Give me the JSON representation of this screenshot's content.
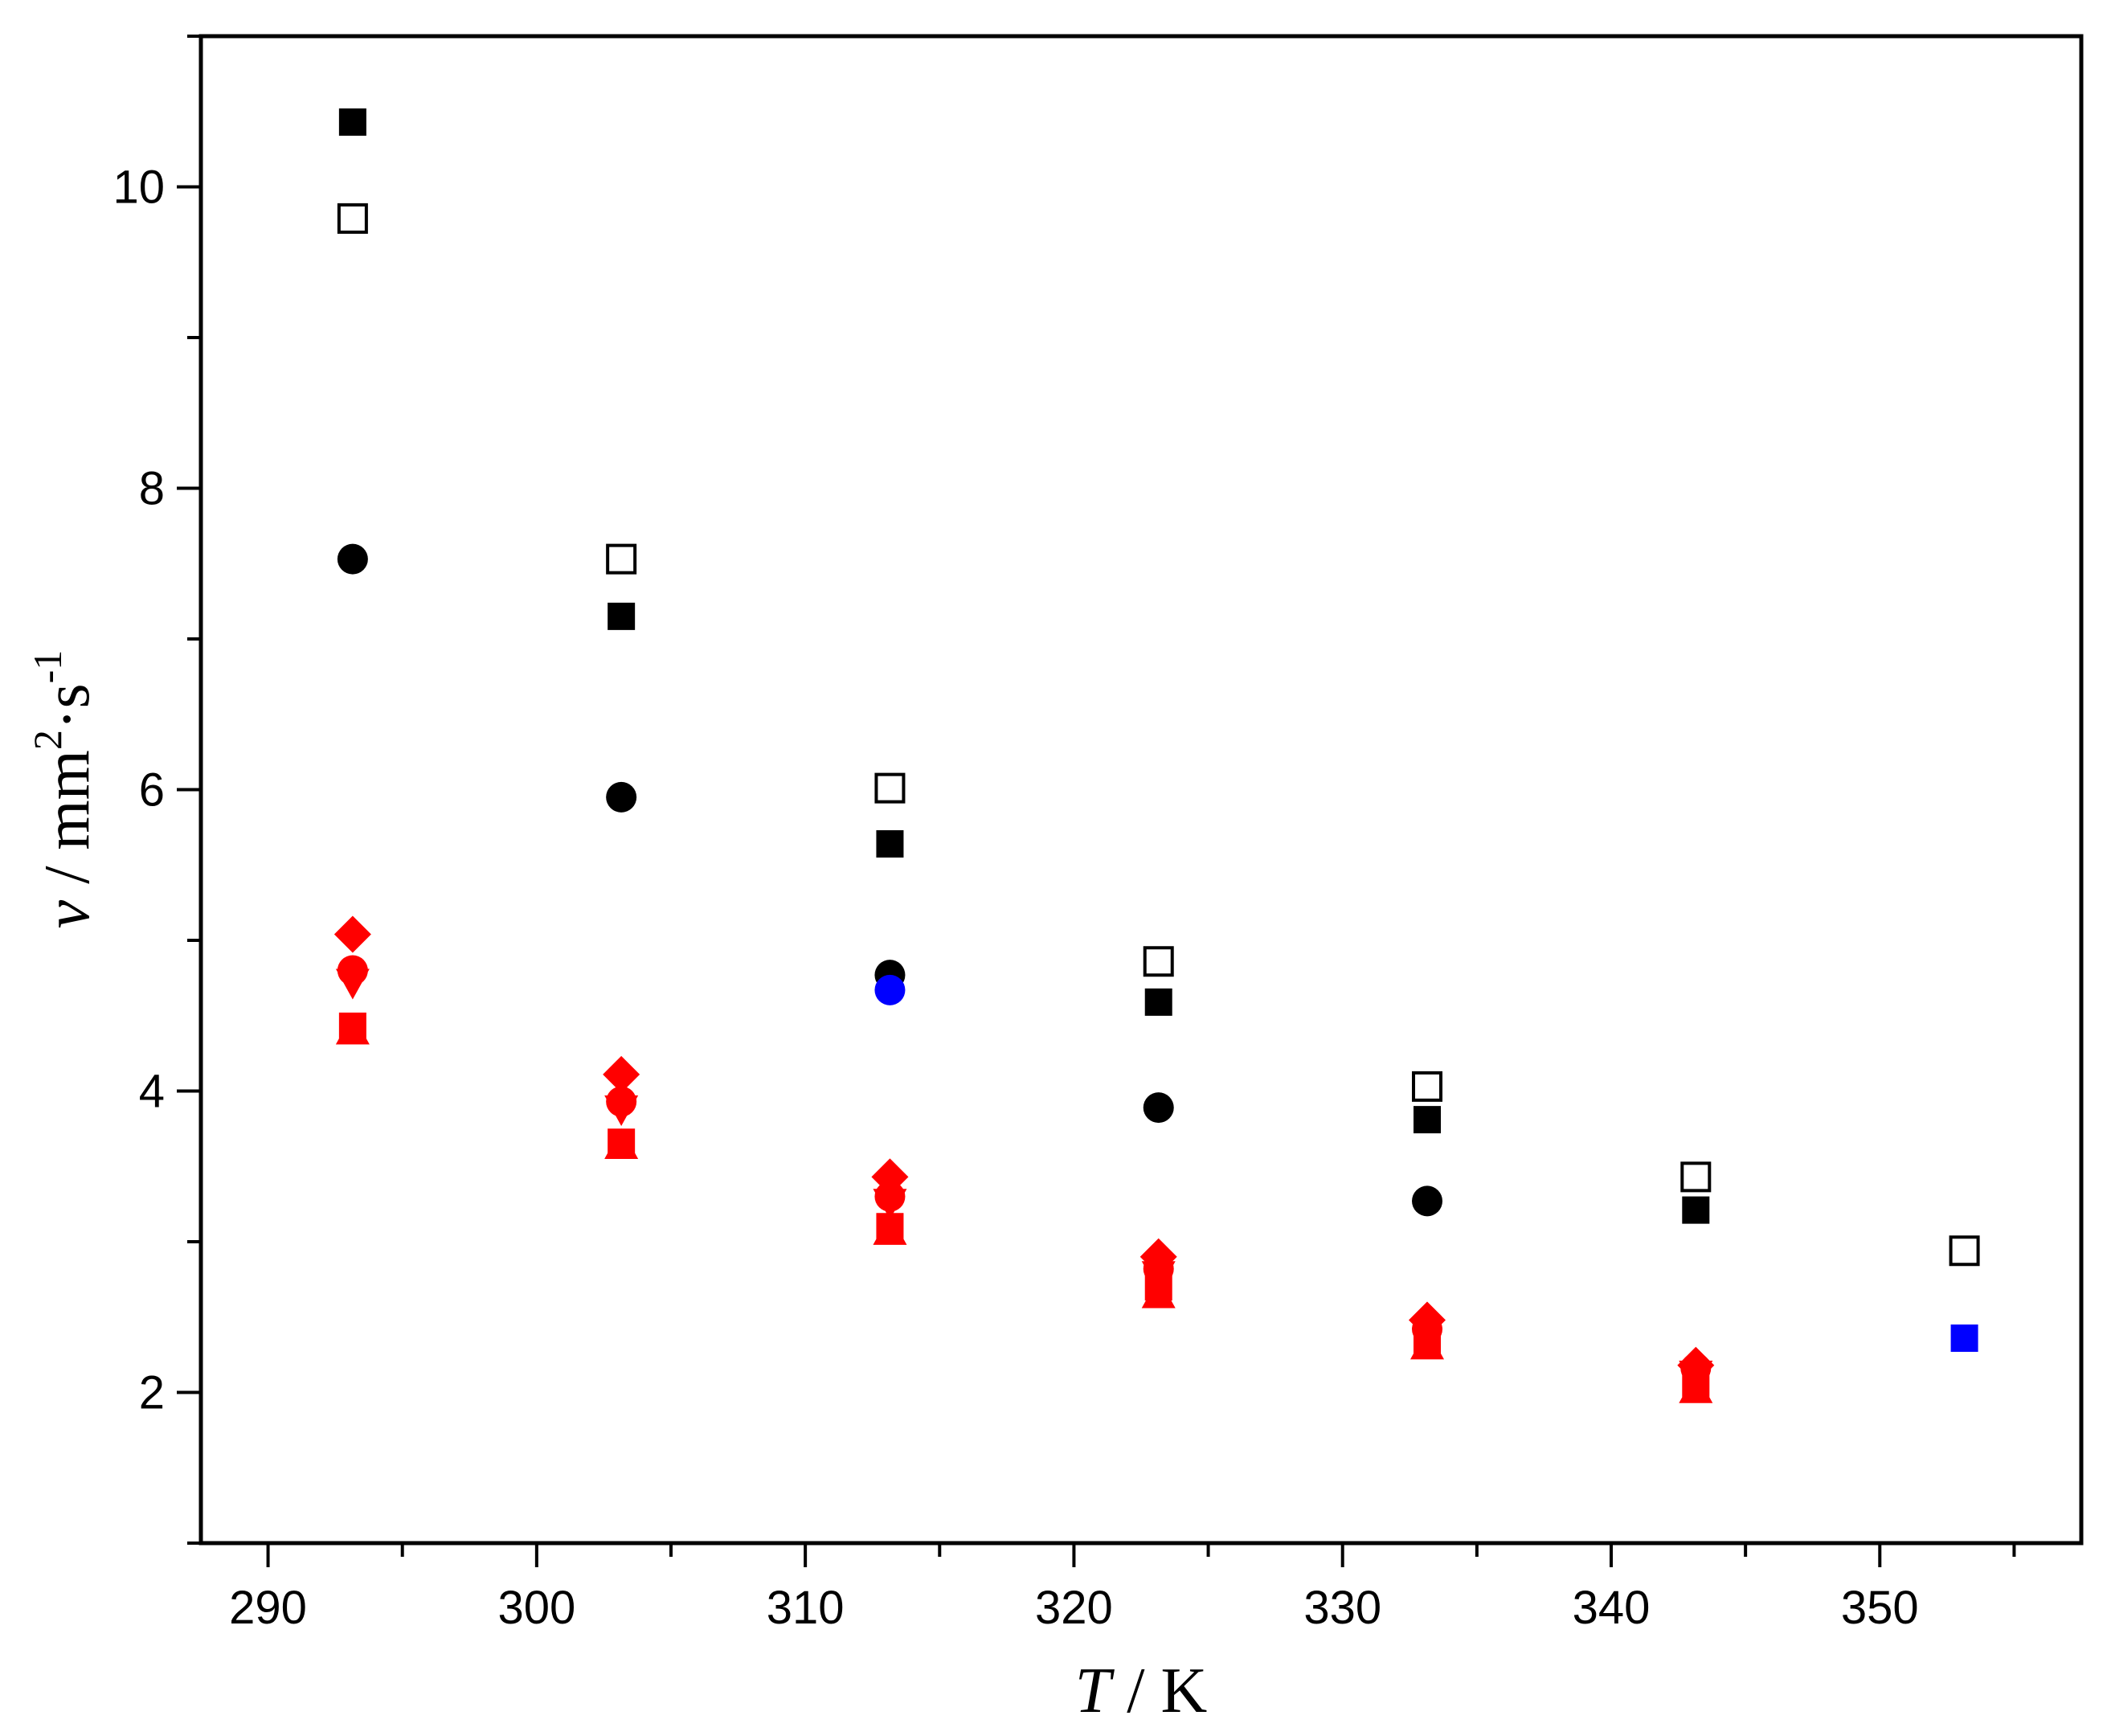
{
  "chart_data": {
    "type": "scatter",
    "title": "",
    "xlabel": {
      "symbol": "T",
      "unit": "K"
    },
    "ylabel": {
      "symbol": "ν",
      "unit_base": "mm",
      "unit_exp1": "2",
      "unit_mid": "·s",
      "unit_exp2": "-1"
    },
    "xlim": [
      287.5,
      357.5
    ],
    "ylim": [
      1,
      11
    ],
    "xticks": [
      290,
      300,
      310,
      320,
      330,
      340,
      350
    ],
    "yticks": [
      2,
      4,
      6,
      8,
      10
    ],
    "grid": false,
    "legend": "none",
    "series": [
      {
        "marker": "square-open",
        "color": "#000000",
        "x": [
          293.15,
          303.15,
          313.15,
          323.15,
          333.15,
          343.15,
          353.15
        ],
        "y": [
          9.79,
          7.53,
          6.01,
          4.86,
          4.03,
          3.43,
          2.94
        ]
      },
      {
        "marker": "square-filled",
        "color": "#000000",
        "x": [
          293.15,
          303.15,
          313.15,
          323.15,
          333.15,
          343.15
        ],
        "y": [
          10.43,
          7.15,
          5.64,
          4.59,
          3.81,
          3.21
        ]
      },
      {
        "marker": "circle-filled",
        "color": "#000000",
        "x": [
          293.15,
          303.15,
          313.15,
          323.15,
          333.15
        ],
        "y": [
          7.53,
          5.95,
          4.77,
          3.89,
          3.27
        ]
      },
      {
        "marker": "circle-filled",
        "color": "#0000ff",
        "x": [
          313.15
        ],
        "y": [
          4.67
        ]
      },
      {
        "marker": "square-filled",
        "color": "#0000ff",
        "x": [
          353.15
        ],
        "y": [
          2.36
        ]
      },
      {
        "marker": "diamond-filled",
        "color": "#ff0000",
        "x": [
          293.15,
          303.15,
          313.15,
          323.15,
          333.15,
          343.15
        ],
        "y": [
          5.04,
          4.11,
          3.43,
          2.9,
          2.48,
          2.18
        ]
      },
      {
        "marker": "circle-filled",
        "color": "#ff0000",
        "x": [
          293.15,
          303.15,
          313.15,
          323.15,
          333.15,
          343.15
        ],
        "y": [
          4.8,
          3.93,
          3.3,
          2.82,
          2.42,
          2.16
        ]
      },
      {
        "marker": "triangle-down-filled",
        "color": "#ff0000",
        "x": [
          293.15,
          303.15,
          313.15,
          323.15,
          333.15,
          343.15
        ],
        "y": [
          4.72,
          3.88,
          3.26,
          2.78,
          2.4,
          2.12
        ]
      },
      {
        "marker": "square-filled",
        "color": "#ff0000",
        "x": [
          293.15,
          303.15,
          313.15,
          323.15,
          333.15,
          343.15
        ],
        "y": [
          4.43,
          3.66,
          3.1,
          2.7,
          2.34,
          2.06
        ]
      },
      {
        "marker": "triangle-up-filled",
        "color": "#ff0000",
        "x": [
          293.15,
          303.15,
          313.15,
          323.15,
          333.15,
          343.15
        ],
        "y": [
          4.4,
          3.64,
          3.07,
          2.65,
          2.31,
          2.02
        ]
      }
    ]
  }
}
